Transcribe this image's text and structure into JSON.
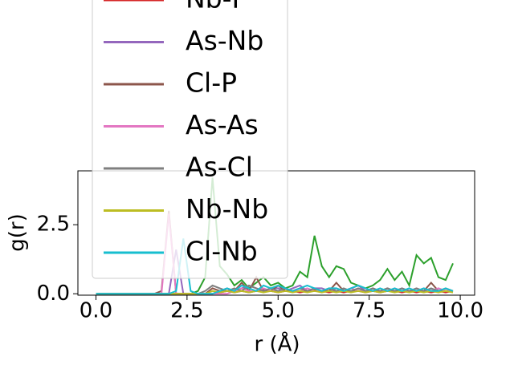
{
  "chart_data": {
    "type": "line",
    "xlabel": "r (Å)",
    "ylabel": "g(r)",
    "x": [
      0,
      0.2,
      0.4,
      0.6,
      0.8,
      1.0,
      1.2,
      1.4,
      1.6,
      1.8,
      2.0,
      2.2,
      2.4,
      2.6,
      2.8,
      3.0,
      3.2,
      3.4,
      3.6,
      3.8,
      4.0,
      4.2,
      4.4,
      4.6,
      4.8,
      5.0,
      5.2,
      5.4,
      5.6,
      5.8,
      6.0,
      6.2,
      6.4,
      6.6,
      6.8,
      7.0,
      7.2,
      7.4,
      7.6,
      7.8,
      8.0,
      8.2,
      8.4,
      8.6,
      8.8,
      9.0,
      9.2,
      9.4,
      9.6,
      9.8
    ],
    "xlim": [
      -0.495,
      10.395
    ],
    "xticks": [
      {
        "value": 0,
        "label": "0.0"
      },
      {
        "value": 2.5,
        "label": "2.5"
      },
      {
        "value": 5,
        "label": "5.0"
      },
      {
        "value": 7.5,
        "label": "7.5"
      },
      {
        "value": 10,
        "label": "10.0"
      }
    ],
    "ylim": [
      -0.05,
      4.45
    ],
    "yticks": [
      {
        "value": 0,
        "label": "0.0"
      },
      {
        "value": 2.5,
        "label": "2.5"
      }
    ],
    "series": [
      {
        "color": "#2ca02c",
        "values": [
          0,
          0,
          0,
          0,
          0,
          0,
          0,
          0,
          0,
          0,
          0,
          0,
          0,
          0,
          0.1,
          0.6,
          4.2,
          1.0,
          0.7,
          0.3,
          0.5,
          0.2,
          0.4,
          0.6,
          0.3,
          0.4,
          0.2,
          0.3,
          0.8,
          0.6,
          2.1,
          1.0,
          0.6,
          1.0,
          0.9,
          0.4,
          0.3,
          0.2,
          0.3,
          0.5,
          0.9,
          0.5,
          0.8,
          0.3,
          1.4,
          1.1,
          1.3,
          0.6,
          0.5,
          1.1
        ]
      },
      {
        "name": "Nb-P",
        "color": "#d62728",
        "values": [
          0,
          0,
          0,
          0,
          0,
          0,
          0,
          0,
          0,
          0,
          0,
          0,
          0,
          0,
          0,
          0,
          0,
          0.05,
          0.1,
          0.05,
          0.1,
          0.05,
          0.1,
          0.15,
          0.1,
          0.05,
          0.1,
          0.1,
          0.05,
          0.1,
          0.15,
          0.1,
          0.05,
          0.1,
          0.05,
          0.1,
          0.1,
          0.05,
          0.1,
          0.05,
          0.1,
          0.1,
          0.05,
          0.1,
          0.05,
          0.1,
          0.05,
          0.1,
          0.05,
          0.1
        ]
      },
      {
        "name": "As-Nb",
        "color": "#9467bd",
        "values": [
          0,
          0,
          0,
          0,
          0,
          0,
          0,
          0,
          0,
          0,
          0,
          1.6,
          0,
          0,
          0,
          0,
          0,
          0.1,
          0.2,
          0.1,
          0.2,
          0.3,
          0.2,
          0.1,
          0.2,
          0.2,
          0.1,
          0.2,
          0.3,
          0.1,
          0.2,
          0.2,
          0.1,
          0.2,
          0.1,
          0.2,
          0.3,
          0.1,
          0.2,
          0.1,
          0.2,
          0.1,
          0.2,
          0.1,
          0.1,
          0.2,
          0.1,
          0.2,
          0.1,
          0.1
        ]
      },
      {
        "name": "Cl-P",
        "color": "#8c564b",
        "values": [
          0,
          0,
          0,
          0,
          0,
          0,
          0,
          0,
          0,
          0.1,
          3.0,
          0,
          0,
          0,
          0,
          0,
          0.2,
          0.1,
          0.1,
          0.1,
          0.4,
          0.1,
          0.6,
          0.1,
          0.1,
          0.3,
          0.1,
          0.1,
          0.2,
          0.1,
          0.1,
          0.1,
          0.1,
          0.4,
          0.1,
          0.1,
          0.1,
          0.1,
          0.1,
          0.1,
          0.2,
          0.1,
          0.1,
          0.1,
          0.1,
          0.1,
          0.4,
          0.1,
          0.1,
          0.1
        ]
      },
      {
        "name": "As-As",
        "color": "#e377c2",
        "values": [
          0,
          0,
          0,
          0,
          0,
          0,
          0,
          0,
          0,
          0,
          2.9,
          0,
          0,
          0,
          0,
          0,
          0,
          0,
          0,
          0.1,
          0.2,
          0.1,
          0.1,
          0.2,
          0.1,
          0.1,
          0.2,
          0.1,
          0.1,
          0.2,
          0.1,
          0.1,
          0.2,
          0.1,
          0.1,
          0.2,
          0.1,
          0.1,
          0.2,
          0.1,
          0.1,
          0.2,
          0.1,
          0.1,
          0.2,
          0.1,
          0.1,
          0.2,
          0.1,
          0.1
        ]
      },
      {
        "name": "As-Cl",
        "color": "#7f7f7f",
        "values": [
          0,
          0,
          0,
          0,
          0,
          0,
          0,
          0,
          0,
          0,
          0,
          0,
          0,
          0,
          0,
          0.1,
          0.3,
          0.2,
          0.1,
          0.2,
          0.1,
          0.3,
          0.2,
          0.1,
          0.2,
          0.1,
          0.2,
          0.1,
          0.2,
          0.1,
          0.2,
          0.1,
          0.2,
          0.1,
          0.2,
          0.1,
          0.2,
          0.1,
          0.2,
          0.1,
          0.2,
          0.1,
          0.2,
          0.1,
          0.2,
          0.1,
          0.2,
          0.1,
          0.2,
          0.1
        ]
      },
      {
        "name": "Nb-Nb",
        "color": "#bcbd22",
        "values": [
          0,
          0,
          0,
          0,
          0,
          0,
          0,
          0,
          0,
          0,
          0,
          0,
          0,
          0,
          0,
          0,
          0.1,
          0.05,
          0.1,
          0.05,
          0.1,
          0.05,
          0.1,
          0.05,
          0.1,
          0.05,
          0.1,
          0.05,
          0.1,
          0.05,
          0.1,
          0.05,
          0.1,
          0.05,
          0.1,
          0.05,
          0.1,
          0.05,
          0.1,
          0.05,
          0.1,
          0.05,
          0.1,
          0.05,
          0.1,
          0.05,
          0.1,
          0.05,
          0.1,
          0.05
        ]
      },
      {
        "name": "Cl-Nb",
        "color": "#17becf",
        "values": [
          0,
          0,
          0,
          0,
          0,
          0,
          0,
          0,
          0,
          0,
          0,
          0.1,
          2.0,
          0.1,
          0,
          0,
          0,
          0.1,
          0.2,
          0.1,
          0.3,
          0.2,
          0.1,
          0.3,
          0.2,
          0.3,
          0.2,
          0.1,
          0.2,
          0.3,
          0.2,
          0.1,
          0.2,
          0.2,
          0.1,
          0.2,
          0.3,
          0.2,
          0.1,
          0.2,
          0.1,
          0.2,
          0.1,
          0.2,
          0.1,
          0.2,
          0.1,
          0.1,
          0.2,
          0.1
        ]
      }
    ]
  }
}
